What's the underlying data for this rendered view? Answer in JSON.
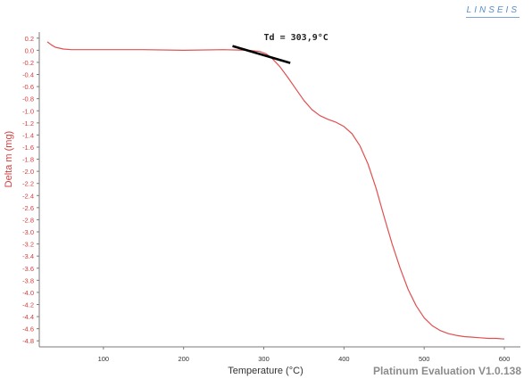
{
  "brand": "LINSEIS",
  "footer": "Platinum Evaluation V1.0.138",
  "colors": {
    "curve": "#e05050",
    "axis_label": "#d63c3c",
    "tick_label": "#d63c3c",
    "x_tick_label": "#333333",
    "annotation_line": "#000000"
  },
  "chart_data": {
    "type": "line",
    "title": "",
    "xlabel": "Temperature (°C)",
    "ylabel": "Delta m (mg)",
    "xlim": [
      20,
      620
    ],
    "ylim": [
      -4.9,
      0.3
    ],
    "x_ticks": [
      100,
      200,
      300,
      400,
      500,
      600
    ],
    "y_ticks": [
      0.2,
      0.0,
      -0.2,
      -0.4,
      -0.6,
      -0.8,
      -1.0,
      -1.2,
      -1.4,
      -1.6,
      -1.8,
      -2.0,
      -2.2,
      -2.4,
      -2.6,
      -2.8,
      -3.0,
      -3.2,
      -3.4,
      -3.6,
      -3.8,
      -4.0,
      -4.2,
      -4.4,
      -4.6,
      -4.8
    ],
    "grid": false,
    "series": [
      {
        "x": [
          30,
          35,
          40,
          50,
          60,
          80,
          100,
          150,
          200,
          250,
          280,
          295,
          303,
          310,
          320,
          330,
          340,
          350,
          360,
          370,
          380,
          390,
          400,
          410,
          420,
          430,
          440,
          450,
          460,
          470,
          480,
          490,
          500,
          510,
          520,
          530,
          540,
          550,
          560,
          570,
          580,
          590,
          600
        ],
        "y": [
          0.14,
          0.09,
          0.05,
          0.02,
          0.01,
          0.01,
          0.01,
          0.01,
          0.0,
          0.01,
          0.0,
          -0.02,
          -0.06,
          -0.13,
          -0.27,
          -0.45,
          -0.64,
          -0.83,
          -0.98,
          -1.08,
          -1.14,
          -1.19,
          -1.26,
          -1.38,
          -1.58,
          -1.88,
          -2.28,
          -2.75,
          -3.2,
          -3.6,
          -3.95,
          -4.22,
          -4.42,
          -4.55,
          -4.63,
          -4.68,
          -4.71,
          -4.73,
          -4.74,
          -4.75,
          -4.76,
          -4.76,
          -4.77
        ]
      }
    ],
    "annotations": [
      {
        "text": "Td = 303,9°C",
        "tangent_line": {
          "x1": 261,
          "y1": 0.07,
          "x2": 333,
          "y2": -0.21
        },
        "text_anchor_x": 300,
        "text_anchor_y": 0.2
      }
    ]
  }
}
